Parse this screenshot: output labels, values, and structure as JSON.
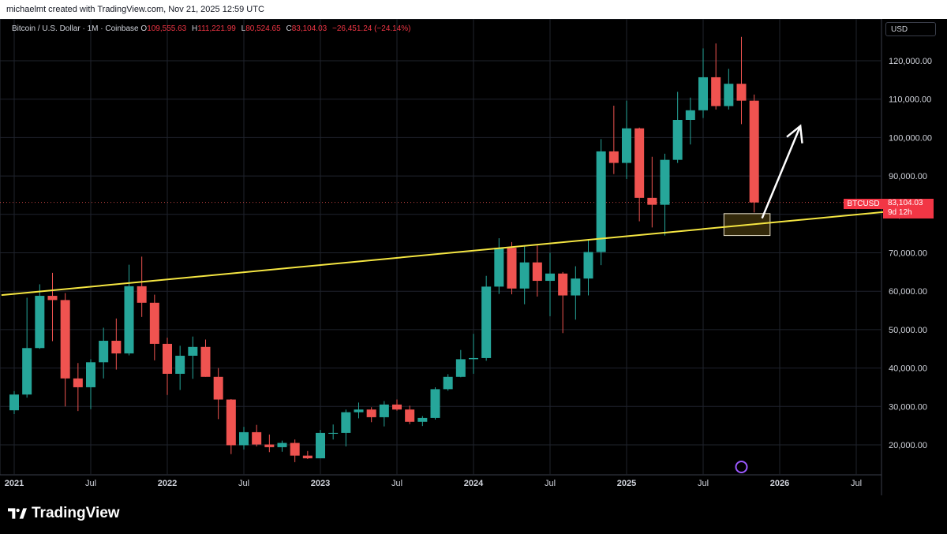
{
  "attribution": "michaelmt created with TradingView.com, Nov 21, 2025 12:59 UTC",
  "legend": {
    "symbol": "Bitcoin / U.S. Dollar · 1M · Coinbase",
    "o_label": "O",
    "o_value": "109,555.63",
    "h_label": "H",
    "h_value": "111,221.99",
    "l_label": "L",
    "l_value": "80,524.65",
    "c_label": "C",
    "c_value": "83,104.03",
    "change": "−26,451.24 (−24.14%)"
  },
  "currency": "USD",
  "price_tag": {
    "symbol": "BTCUSD",
    "price": "83,104.03",
    "countdown": "9d 12h"
  },
  "brand": "TradingView",
  "colors": {
    "up": "#26a69a",
    "down": "#ef5350",
    "trendline": "#f5e642",
    "annotation_arrow": "#ffffff",
    "highlight_box": "#5c4a12"
  },
  "chart_data": {
    "type": "candlestick",
    "title": "Bitcoin / U.S. Dollar · 1M · Coinbase",
    "x_ticks": [
      "2021",
      "Jul",
      "2022",
      "Jul",
      "2023",
      "Jul",
      "2024",
      "Jul",
      "2025",
      "Jul",
      "2026",
      "Jul"
    ],
    "y_ticks": [
      "20,000.00",
      "30,000.00",
      "40,000.00",
      "50,000.00",
      "60,000.00",
      "70,000.00",
      "80,000.00",
      "90,000.00",
      "100,000.00",
      "110,000.00",
      "120,000.00"
    ],
    "y_tick_values": [
      20000,
      30000,
      40000,
      50000,
      60000,
      70000,
      80000,
      90000,
      100000,
      110000,
      120000
    ],
    "ylim": [
      12000,
      128000
    ],
    "last_price": 83104.03,
    "trendline": {
      "from": [
        "2020-12",
        59000
      ],
      "to": [
        "2026-12",
        81500
      ]
    },
    "highlight_box": {
      "x": [
        "2025-09",
        "2025-12"
      ],
      "y": [
        74500,
        80200
      ]
    },
    "arrow": {
      "from": [
        "2025-11",
        79000
      ],
      "to": [
        "2026-02",
        103000
      ]
    },
    "candles": [
      {
        "t": "2021-01",
        "o": 29000,
        "h": 34000,
        "l": 28000,
        "c": 33100
      },
      {
        "t": "2021-02",
        "o": 33100,
        "h": 58300,
        "l": 32300,
        "c": 45200
      },
      {
        "t": "2021-03",
        "o": 45200,
        "h": 61800,
        "l": 45000,
        "c": 58800
      },
      {
        "t": "2021-04",
        "o": 58800,
        "h": 64800,
        "l": 47000,
        "c": 57700
      },
      {
        "t": "2021-05",
        "o": 57700,
        "h": 59500,
        "l": 30000,
        "c": 37300
      },
      {
        "t": "2021-06",
        "o": 37300,
        "h": 41300,
        "l": 28800,
        "c": 35000
      },
      {
        "t": "2021-07",
        "o": 35000,
        "h": 42300,
        "l": 29300,
        "c": 41500
      },
      {
        "t": "2021-08",
        "o": 41500,
        "h": 50500,
        "l": 37300,
        "c": 47100
      },
      {
        "t": "2021-09",
        "o": 47100,
        "h": 52900,
        "l": 39600,
        "c": 43800
      },
      {
        "t": "2021-10",
        "o": 43800,
        "h": 66900,
        "l": 43300,
        "c": 61300
      },
      {
        "t": "2021-11",
        "o": 61300,
        "h": 69000,
        "l": 53300,
        "c": 57000
      },
      {
        "t": "2021-12",
        "o": 57000,
        "h": 59100,
        "l": 42000,
        "c": 46300
      },
      {
        "t": "2022-01",
        "o": 46300,
        "h": 47900,
        "l": 33000,
        "c": 38500
      },
      {
        "t": "2022-02",
        "o": 38500,
        "h": 45800,
        "l": 34300,
        "c": 43200
      },
      {
        "t": "2022-03",
        "o": 43200,
        "h": 48200,
        "l": 37200,
        "c": 45500
      },
      {
        "t": "2022-04",
        "o": 45500,
        "h": 47400,
        "l": 37700,
        "c": 37700
      },
      {
        "t": "2022-05",
        "o": 37700,
        "h": 40000,
        "l": 26700,
        "c": 31800
      },
      {
        "t": "2022-06",
        "o": 31800,
        "h": 31900,
        "l": 17600,
        "c": 19900
      },
      {
        "t": "2022-07",
        "o": 19900,
        "h": 24700,
        "l": 18800,
        "c": 23300
      },
      {
        "t": "2022-08",
        "o": 23300,
        "h": 25200,
        "l": 19600,
        "c": 20100
      },
      {
        "t": "2022-09",
        "o": 20100,
        "h": 22700,
        "l": 18100,
        "c": 19400
      },
      {
        "t": "2022-10",
        "o": 19400,
        "h": 21100,
        "l": 18200,
        "c": 20500
      },
      {
        "t": "2022-11",
        "o": 20500,
        "h": 21400,
        "l": 15500,
        "c": 17200
      },
      {
        "t": "2022-12",
        "o": 17200,
        "h": 18400,
        "l": 16300,
        "c": 16500
      },
      {
        "t": "2023-01",
        "o": 16500,
        "h": 23900,
        "l": 16500,
        "c": 23100
      },
      {
        "t": "2023-02",
        "o": 23100,
        "h": 25300,
        "l": 21400,
        "c": 23100
      },
      {
        "t": "2023-03",
        "o": 23100,
        "h": 29200,
        "l": 19600,
        "c": 28500
      },
      {
        "t": "2023-04",
        "o": 28500,
        "h": 31000,
        "l": 26900,
        "c": 29200
      },
      {
        "t": "2023-05",
        "o": 29200,
        "h": 29800,
        "l": 25900,
        "c": 27200
      },
      {
        "t": "2023-06",
        "o": 27200,
        "h": 31400,
        "l": 24800,
        "c": 30500
      },
      {
        "t": "2023-07",
        "o": 30500,
        "h": 31800,
        "l": 28900,
        "c": 29200
      },
      {
        "t": "2023-08",
        "o": 29200,
        "h": 30200,
        "l": 25400,
        "c": 26000
      },
      {
        "t": "2023-09",
        "o": 26000,
        "h": 27500,
        "l": 24900,
        "c": 27000
      },
      {
        "t": "2023-10",
        "o": 27000,
        "h": 35000,
        "l": 26600,
        "c": 34500
      },
      {
        "t": "2023-11",
        "o": 34500,
        "h": 38400,
        "l": 34100,
        "c": 37700
      },
      {
        "t": "2023-12",
        "o": 37700,
        "h": 44700,
        "l": 37600,
        "c": 42300
      },
      {
        "t": "2024-01",
        "o": 42300,
        "h": 48900,
        "l": 38500,
        "c": 42600
      },
      {
        "t": "2024-02",
        "o": 42600,
        "h": 64000,
        "l": 41900,
        "c": 61200
      },
      {
        "t": "2024-03",
        "o": 61200,
        "h": 73800,
        "l": 59300,
        "c": 71300
      },
      {
        "t": "2024-04",
        "o": 71300,
        "h": 72800,
        "l": 59200,
        "c": 60700
      },
      {
        "t": "2024-05",
        "o": 60700,
        "h": 71900,
        "l": 56600,
        "c": 67500
      },
      {
        "t": "2024-06",
        "o": 67500,
        "h": 71900,
        "l": 58600,
        "c": 62700
      },
      {
        "t": "2024-07",
        "o": 62700,
        "h": 70000,
        "l": 53500,
        "c": 64600
      },
      {
        "t": "2024-08",
        "o": 64600,
        "h": 65000,
        "l": 49100,
        "c": 58900
      },
      {
        "t": "2024-09",
        "o": 58900,
        "h": 66500,
        "l": 52600,
        "c": 63300
      },
      {
        "t": "2024-10",
        "o": 63300,
        "h": 73600,
        "l": 58900,
        "c": 70200
      },
      {
        "t": "2024-11",
        "o": 70200,
        "h": 99600,
        "l": 66800,
        "c": 96400
      },
      {
        "t": "2024-12",
        "o": 96400,
        "h": 108300,
        "l": 90500,
        "c": 93400
      },
      {
        "t": "2025-01",
        "o": 93400,
        "h": 109600,
        "l": 89200,
        "c": 102400
      },
      {
        "t": "2025-02",
        "o": 102400,
        "h": 102600,
        "l": 78200,
        "c": 84300
      },
      {
        "t": "2025-03",
        "o": 84300,
        "h": 95000,
        "l": 76600,
        "c": 82500
      },
      {
        "t": "2025-04",
        "o": 82500,
        "h": 95800,
        "l": 74500,
        "c": 94200
      },
      {
        "t": "2025-05",
        "o": 94200,
        "h": 111900,
        "l": 93400,
        "c": 104600
      },
      {
        "t": "2025-06",
        "o": 104600,
        "h": 110400,
        "l": 98200,
        "c": 107100
      },
      {
        "t": "2025-07",
        "o": 107100,
        "h": 123200,
        "l": 105100,
        "c": 115700
      },
      {
        "t": "2025-08",
        "o": 115700,
        "h": 124500,
        "l": 107300,
        "c": 108200
      },
      {
        "t": "2025-09",
        "o": 108200,
        "h": 117900,
        "l": 107300,
        "c": 114000
      },
      {
        "t": "2025-10",
        "o": 114000,
        "h": 126200,
        "l": 103500,
        "c": 109600
      },
      {
        "t": "2025-11",
        "o": 109600,
        "h": 111200,
        "l": 80500,
        "c": 83100
      }
    ]
  }
}
